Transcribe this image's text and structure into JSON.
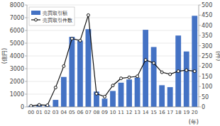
{
  "chart_data": {
    "type": "bar",
    "xlabel": "(年)",
    "ylabel": "(億円)",
    "y2label": "(件)",
    "categories": [
      "00",
      "01",
      "02",
      "03",
      "04",
      "05",
      "06",
      "07",
      "08",
      "09",
      "10",
      "11",
      "12",
      "13",
      "14",
      "15",
      "16",
      "17",
      "18",
      "19",
      "20"
    ],
    "series": [
      {
        "name": "売買取引額",
        "type": "bar",
        "color": "#4472C4",
        "values": [
          80,
          180,
          120,
          550,
          2350,
          5500,
          5200,
          6100,
          1200,
          650,
          1250,
          1900,
          2150,
          2300,
          6050,
          4700,
          1700,
          1550,
          5600,
          4350,
          7150
        ]
      },
      {
        "name": "売買取引件数",
        "type": "line",
        "axis": "y2",
        "color": "#111111",
        "marker": "circle",
        "values": [
          5,
          10,
          8,
          95,
          200,
          335,
          325,
          450,
          65,
          50,
          105,
          140,
          145,
          150,
          230,
          215,
          170,
          160,
          175,
          180,
          175
        ]
      }
    ],
    "ylim": [
      0,
      8000
    ],
    "yticks": [
      0,
      1000,
      2000,
      3000,
      4000,
      5000,
      6000,
      7000,
      8000
    ],
    "y2lim": [
      0,
      500
    ],
    "y2ticks": [
      0,
      50,
      100,
      150,
      200,
      250,
      300,
      350,
      400,
      450,
      500
    ],
    "grid": true,
    "legend": "upper left"
  }
}
